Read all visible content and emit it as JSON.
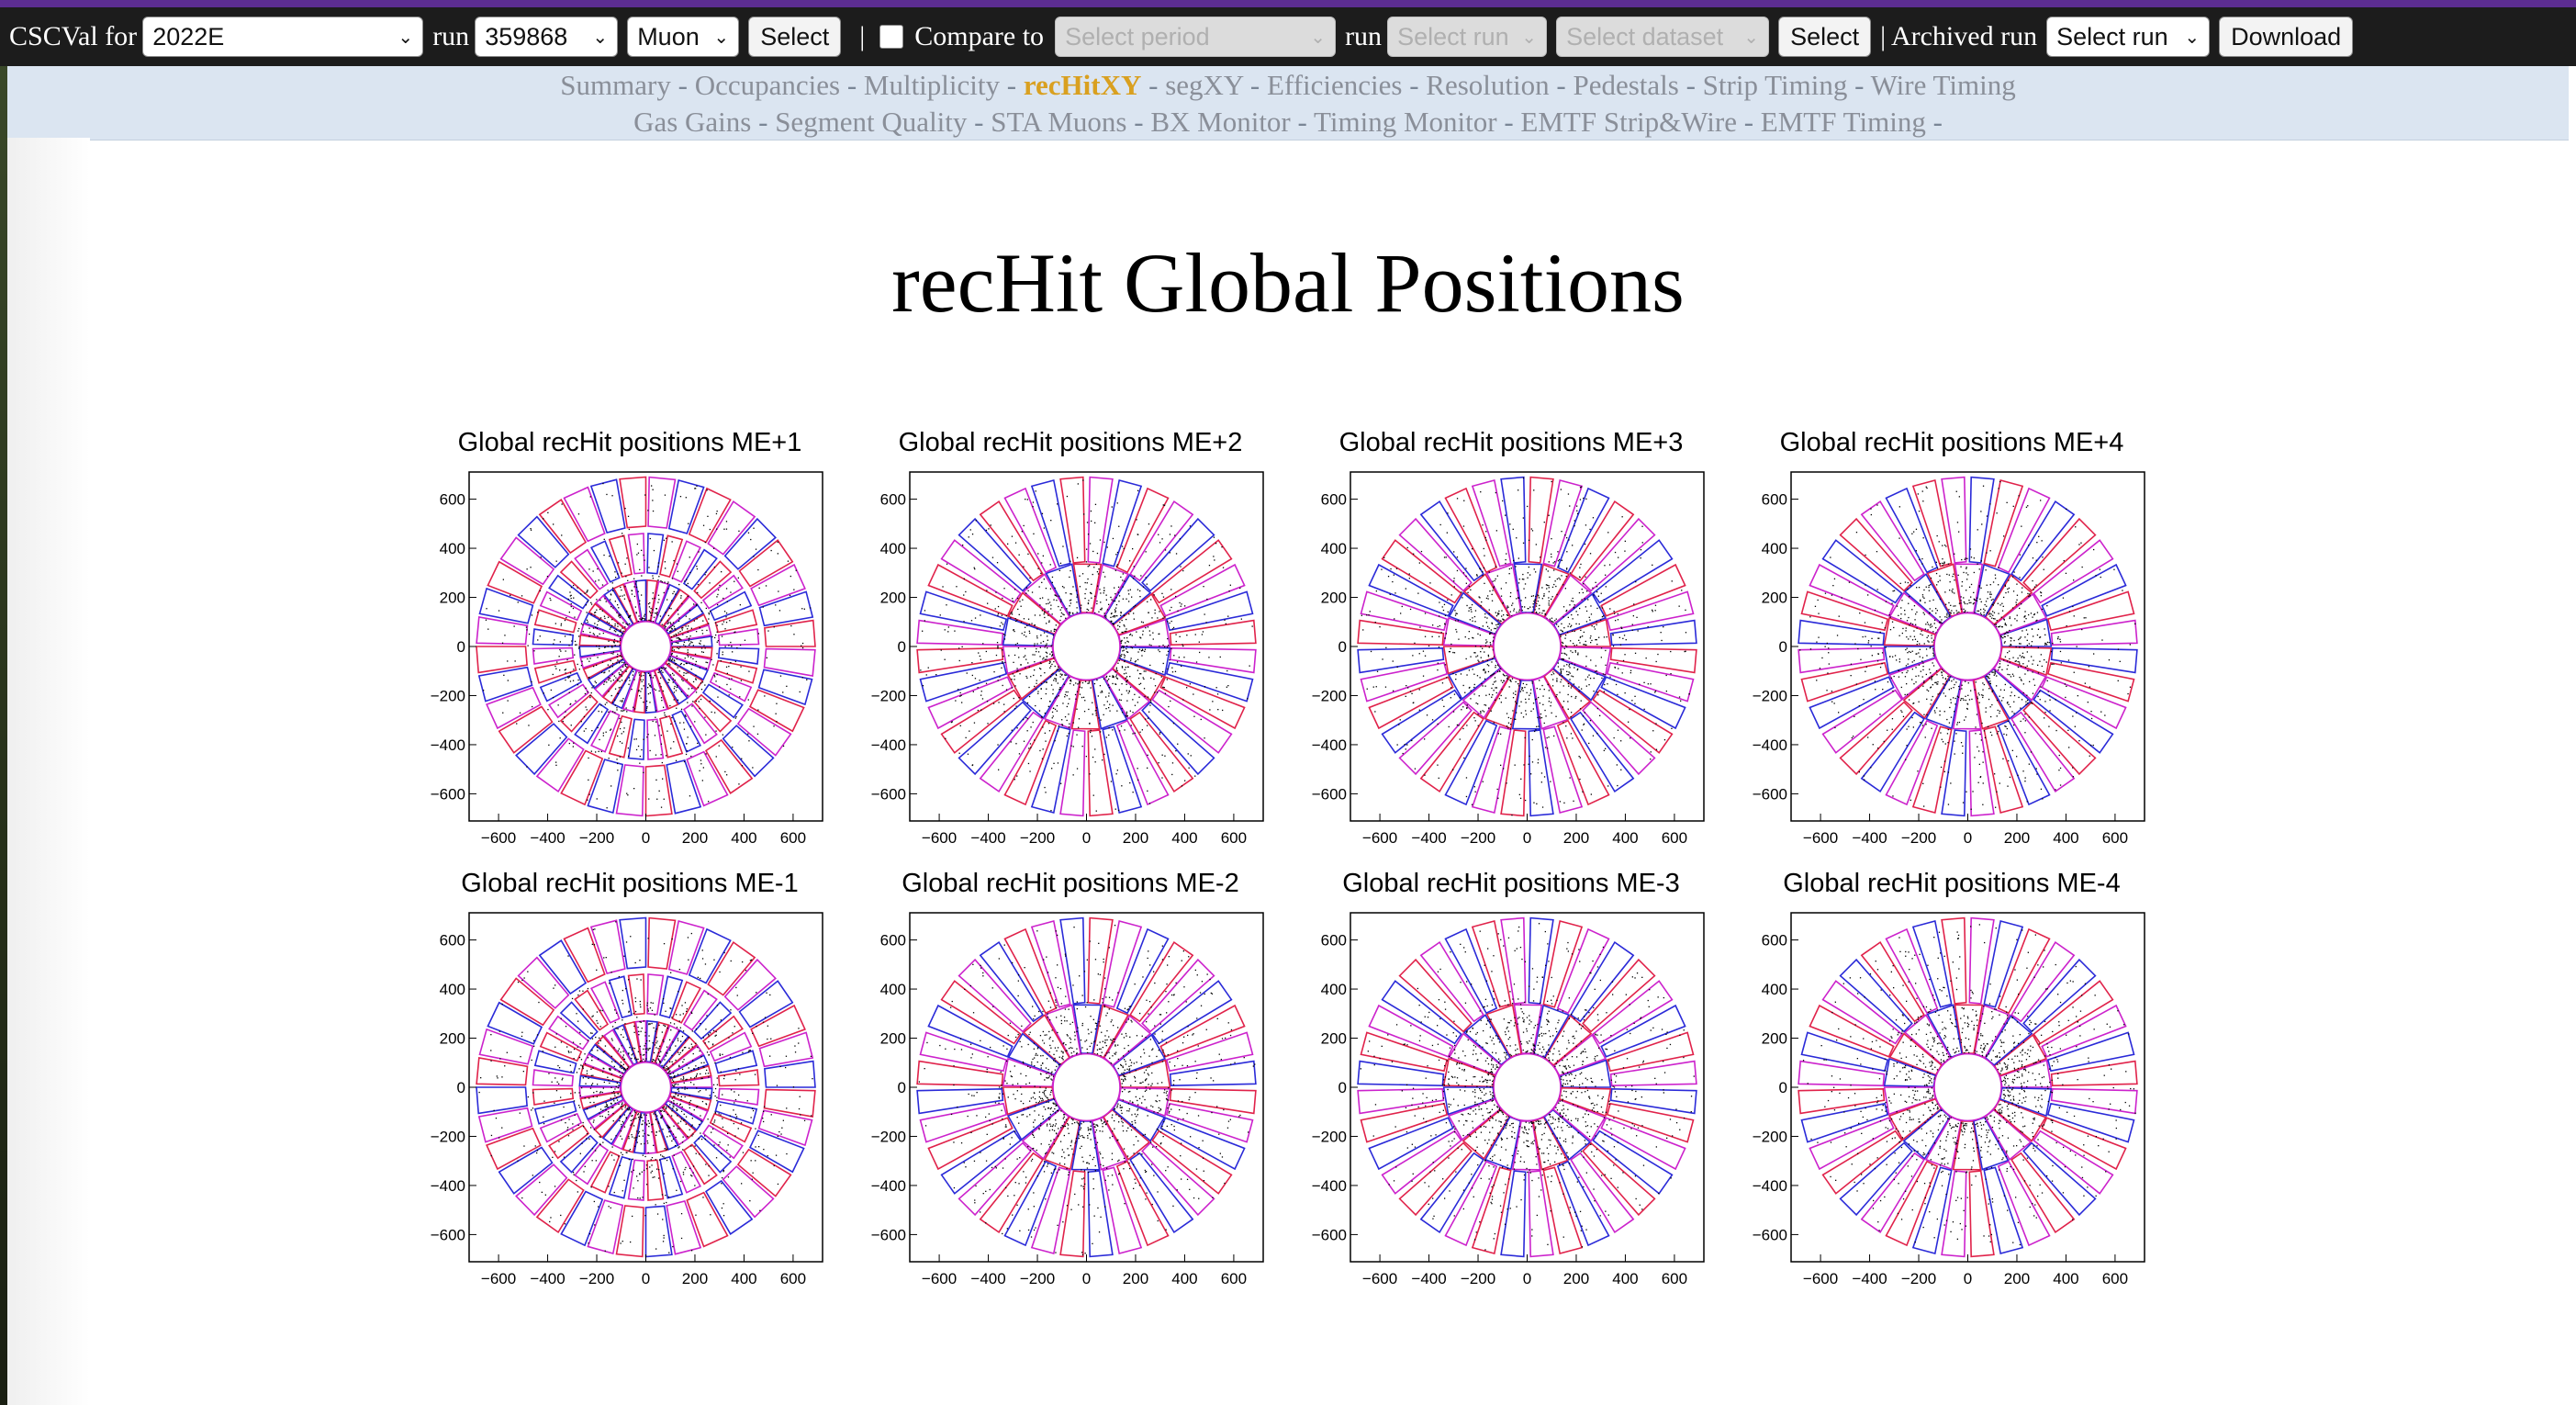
{
  "toolbar": {
    "app_label": "CSCVal for",
    "period_value": "2022E",
    "run_label": "run",
    "run_value": "359868",
    "dataset_value": "Muon",
    "select_label": "Select",
    "separator": "|",
    "compare_label": "Compare to",
    "compare_checked": false,
    "compare_period_placeholder": "Select period",
    "compare_run_label": "run",
    "compare_run_placeholder": "Select run",
    "compare_dataset_placeholder": "Select dataset",
    "compare_select_label": "Select",
    "archived_label": "| Archived run",
    "archived_run_placeholder": "Select run",
    "download_label": "Download"
  },
  "nav": {
    "separator": " - ",
    "row1": [
      "Summary",
      "Occupancies",
      "Multiplicity",
      "recHitXY",
      "segXY",
      "Efficiencies",
      "Resolution",
      "Pedestals",
      "Strip Timing",
      "Wire Timing"
    ],
    "row2": [
      "Gas Gains",
      "Segment Quality",
      "STA Muons",
      "BX Monitor",
      "Timing Monitor",
      "EMTF Strip&Wire",
      "EMTF Timing"
    ],
    "active": "recHitXY"
  },
  "page_title": "recHit Global Positions",
  "plots": [
    {
      "title": "Global recHit positions ME+1",
      "station": "ME+1"
    },
    {
      "title": "Global recHit positions ME+2",
      "station": "ME+2"
    },
    {
      "title": "Global recHit positions ME+3",
      "station": "ME+3"
    },
    {
      "title": "Global recHit positions ME+4",
      "station": "ME+4"
    },
    {
      "title": "Global recHit positions ME-1",
      "station": "ME-1"
    },
    {
      "title": "Global recHit positions ME-2",
      "station": "ME-2"
    },
    {
      "title": "Global recHit positions ME-3",
      "station": "ME-3"
    },
    {
      "title": "Global recHit positions ME-4",
      "station": "ME-4"
    }
  ],
  "axis": {
    "x_ticks": [
      -600,
      -400,
      -200,
      0,
      200,
      400,
      600
    ],
    "y_ticks": [
      600,
      400,
      200,
      0,
      -200,
      -400,
      -600
    ],
    "x_tick_labels": [
      "−600",
      "−400",
      "−200",
      "0",
      "200",
      "400",
      "600"
    ],
    "y_tick_labels": [
      "600",
      "400",
      "200",
      "0",
      "−200",
      "−400",
      "−600"
    ],
    "range": [
      -720,
      720
    ]
  },
  "colors": {
    "toolbar_bg": "#1c1c1c",
    "nav_bg": "#dbe5f1",
    "nav_active": "#d9a020",
    "chamber_blue": "#2a2ad8",
    "chamber_magenta": "#cc22cc",
    "chamber_red": "#e0224a",
    "chamber_orange": "#f0a020",
    "hits": "#000000"
  },
  "icons": {
    "select_arrow": "chevron-down-icon"
  }
}
